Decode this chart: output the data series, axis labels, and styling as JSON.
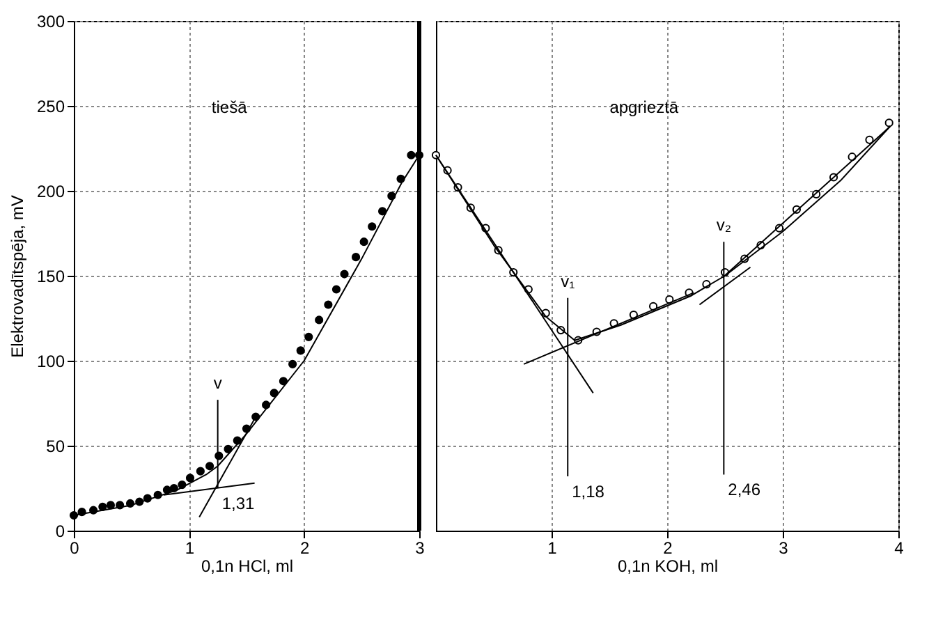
{
  "chart_data": [
    {
      "type": "scatter",
      "xlabel": "0,1n HCl,  ml",
      "ylabel": "Elektrovadītspēja, mV",
      "xlim": [
        0,
        3
      ],
      "xticks": [
        0,
        1,
        2,
        3
      ],
      "ylim": [
        0,
        300
      ],
      "yticks": [
        0,
        50,
        100,
        150,
        200,
        250,
        300
      ],
      "grid": true,
      "series": [
        {
          "marker": "circle",
          "color": "#000000",
          "x": [
            0,
            0.07,
            0.17,
            0.25,
            0.32,
            0.4,
            0.49,
            0.57,
            0.64,
            0.73,
            0.81,
            0.87,
            0.94,
            1.01,
            1.1,
            1.18,
            1.26,
            1.34,
            1.42,
            1.5,
            1.58,
            1.67,
            1.74,
            1.82,
            1.9,
            1.97,
            2.04,
            2.13,
            2.21,
            2.28,
            2.35,
            2.45,
            2.52,
            2.59,
            2.68,
            2.76,
            2.84,
            2.93,
            3.0
          ],
          "values": [
            9,
            11,
            12,
            14,
            15,
            15,
            16,
            17,
            19,
            21,
            24,
            25,
            27,
            31,
            35,
            38,
            44,
            48,
            53,
            60,
            67,
            74,
            81,
            88,
            98,
            106,
            114,
            124,
            133,
            142,
            151,
            161,
            170,
            179,
            188,
            197,
            207,
            221,
            221
          ]
        },
        {
          "type": "line",
          "color": "#000000",
          "x": [
            0,
            0.5,
            0.9,
            1.15,
            1.25,
            1.5,
            2.0,
            2.5,
            2.85,
            3.0
          ],
          "values": [
            9,
            15,
            24,
            33,
            38,
            57,
            100,
            160,
            205,
            221
          ]
        },
        {
          "type": "line",
          "color": "#000000",
          "x": [
            1.09,
            1.58
          ],
          "values": [
            8,
            67
          ]
        },
        {
          "type": "line",
          "color": "#000000",
          "x": [
            0.78,
            1.57
          ],
          "values": [
            21,
            28
          ]
        },
        {
          "type": "line",
          "color": "#000000",
          "x": [
            1.25,
            1.25
          ],
          "values": [
            25,
            77
          ]
        }
      ],
      "ref_lines": [
        {
          "axis": "x",
          "value": 3
        }
      ],
      "annotations": [
        "tiešā",
        {
          "text": "v",
          "x": 1.25,
          "y": 77
        },
        {
          "text": "1,31",
          "x": 1.25,
          "y": 25
        }
      ]
    },
    {
      "type": "scatter",
      "xlabel": "0,1n KOH,  ml",
      "xlim": [
        0,
        4
      ],
      "xticks": [
        1,
        2,
        3,
        4
      ],
      "ylim": [
        0,
        300
      ],
      "yticks": [
        0,
        50,
        100,
        150,
        200,
        250,
        300
      ],
      "tick_labels": "x",
      "grid": true,
      "series": [
        {
          "marker": "circle",
          "color": "#ffffff",
          "x": [
            0,
            0.1,
            0.19,
            0.3,
            0.43,
            0.54,
            0.67,
            0.8,
            0.95,
            1.08,
            1.23,
            1.39,
            1.54,
            1.71,
            1.88,
            2.02,
            2.19,
            2.34,
            2.5,
            2.67,
            2.81,
            2.97,
            3.12,
            3.29,
            3.44,
            3.6,
            3.75,
            3.92
          ],
          "values": [
            221,
            212,
            202,
            190,
            178,
            165,
            152,
            142,
            128,
            118,
            112,
            117,
            122,
            127,
            132,
            136,
            140,
            145,
            152,
            160,
            168,
            178,
            189,
            198,
            208,
            220,
            230,
            240
          ]
        },
        {
          "type": "line",
          "color": "#000000",
          "x": [
            0,
            0.5,
            0.95,
            1.2,
            1.6,
            2.2,
            2.5,
            3.0,
            3.5,
            3.93
          ],
          "values": [
            221,
            168,
            126,
            112,
            121,
            138,
            150,
            176,
            206,
            238
          ]
        },
        {
          "type": "line",
          "color": "#000000",
          "x": [
            0,
            1.36
          ],
          "values": [
            221,
            81
          ]
        },
        {
          "type": "line",
          "color": "#000000",
          "x": [
            0.76,
            2.23
          ],
          "values": [
            98,
            140
          ]
        },
        {
          "type": "line",
          "color": "#000000",
          "x": [
            2.28,
            2.72
          ],
          "values": [
            133,
            155
          ]
        },
        {
          "type": "line",
          "color": "#000000",
          "x": [
            2.48,
            3.93
          ],
          "values": [
            149,
            238
          ]
        },
        {
          "type": "line",
          "color": "#000000",
          "x": [
            1.14,
            1.14
          ],
          "values": [
            32,
            137
          ]
        },
        {
          "type": "line",
          "color": "#000000",
          "x": [
            2.49,
            2.49
          ],
          "values": [
            33,
            170
          ]
        }
      ],
      "annotations": [
        "apgrieztā",
        {
          "text": "v₁",
          "x": 1.14,
          "y": 137
        },
        {
          "text": "v₂",
          "x": 2.49,
          "y": 170
        },
        {
          "text": "1,18",
          "x": 1.14,
          "y": 32
        },
        {
          "text": "2,46",
          "x": 2.49,
          "y": 33
        }
      ]
    }
  ]
}
